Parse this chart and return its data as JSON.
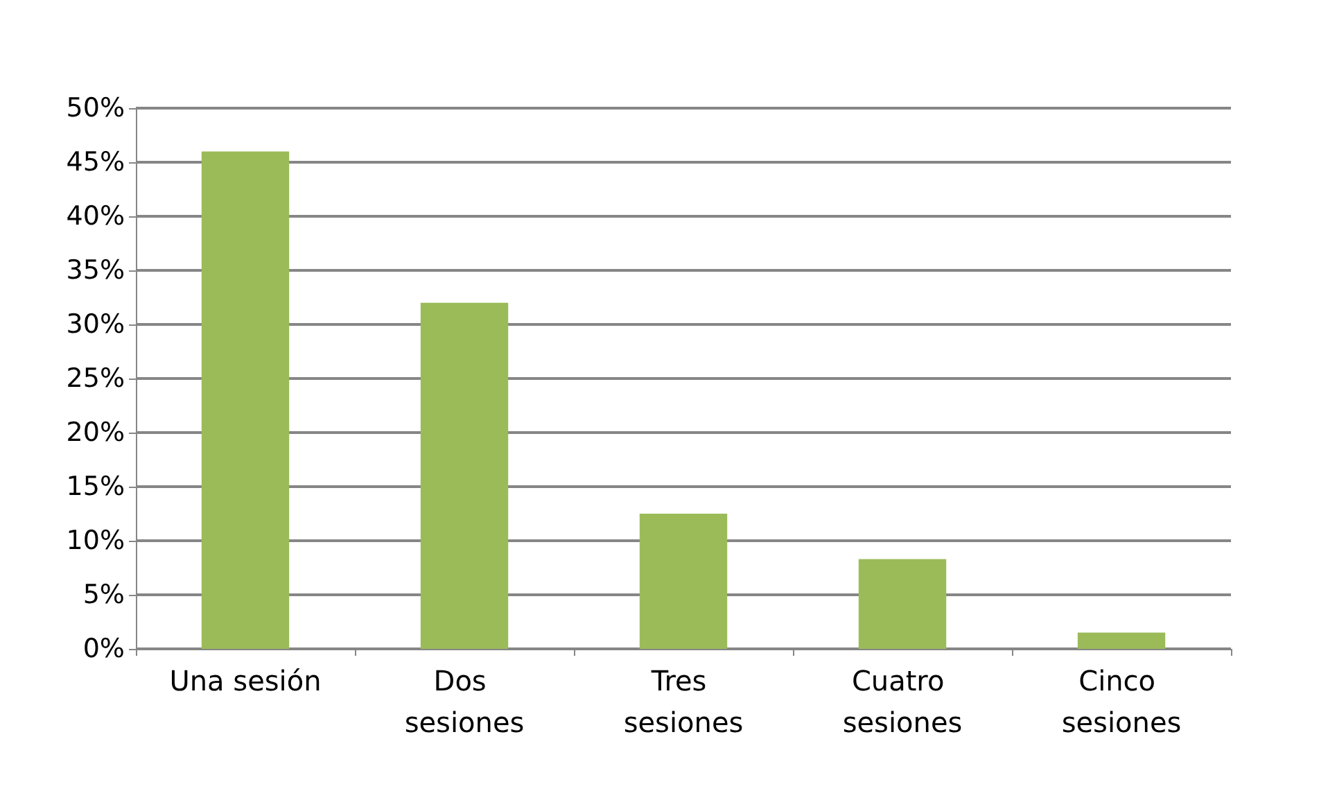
{
  "chart_data": {
    "type": "bar",
    "categories": [
      "Una sesión",
      "Dos sesiones",
      "Tres sesiones",
      "Cuatro sesiones",
      "Cinco sesiones"
    ],
    "values": [
      46,
      32,
      12.5,
      8.3,
      1.5
    ],
    "color": "#9bbb59",
    "ylim": [
      0,
      50
    ],
    "yticks": [
      {
        "value": 0,
        "label": "0%"
      },
      {
        "value": 5,
        "label": "5%"
      },
      {
        "value": 10,
        "label": "10%"
      },
      {
        "value": 15,
        "label": "15%"
      },
      {
        "value": 20,
        "label": "20%"
      },
      {
        "value": 25,
        "label": "25%"
      },
      {
        "value": 30,
        "label": "30%"
      },
      {
        "value": 35,
        "label": "35%"
      },
      {
        "value": 40,
        "label": "40%"
      },
      {
        "value": 45,
        "label": "45%"
      },
      {
        "value": 50,
        "label": "50%"
      }
    ],
    "grid": true
  }
}
